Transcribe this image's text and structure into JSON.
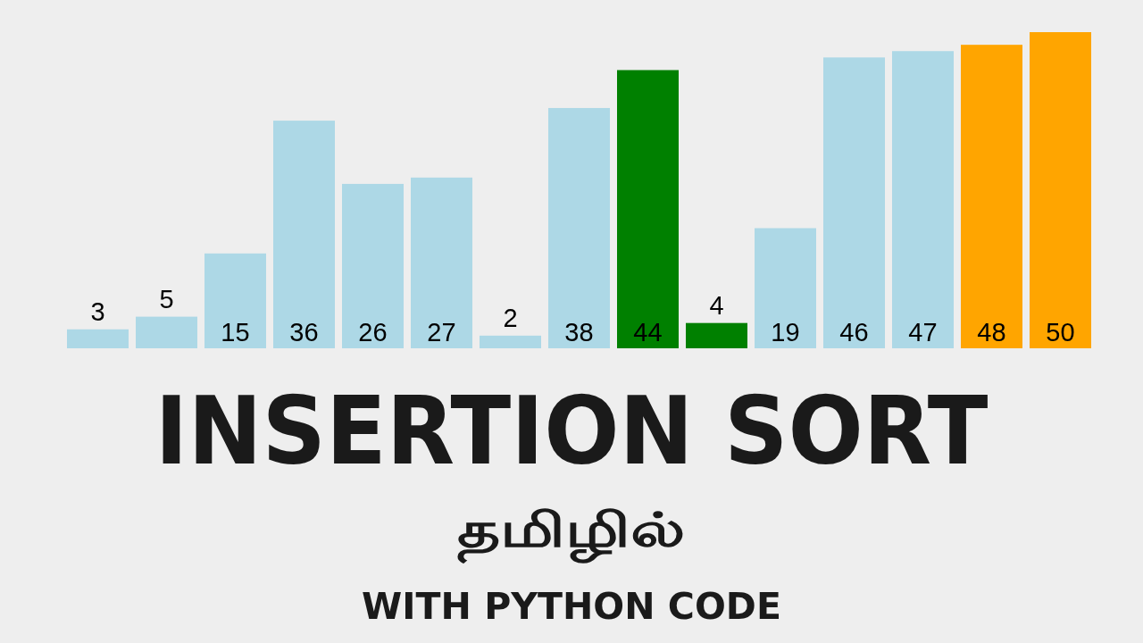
{
  "chart_data": {
    "type": "bar",
    "title": "INSERTION SORT",
    "subtitle": "தமிழில்",
    "annotations": [
      "WITH PYTHON CODE"
    ],
    "categories": [
      null,
      null,
      null,
      null,
      null,
      null,
      null,
      null,
      null,
      null,
      null,
      null,
      null,
      null,
      null
    ],
    "values": [
      3,
      5,
      15,
      36,
      26,
      27,
      2,
      38,
      44,
      4,
      19,
      46,
      47,
      48,
      50
    ],
    "colors": [
      "#add8e6",
      "#add8e6",
      "#add8e6",
      "#add8e6",
      "#add8e6",
      "#add8e6",
      "#add8e6",
      "#add8e6",
      "#008000",
      "#008000",
      "#add8e6",
      "#add8e6",
      "#add8e6",
      "#ffa500",
      "#ffa500"
    ],
    "data_labels": true
  }
}
